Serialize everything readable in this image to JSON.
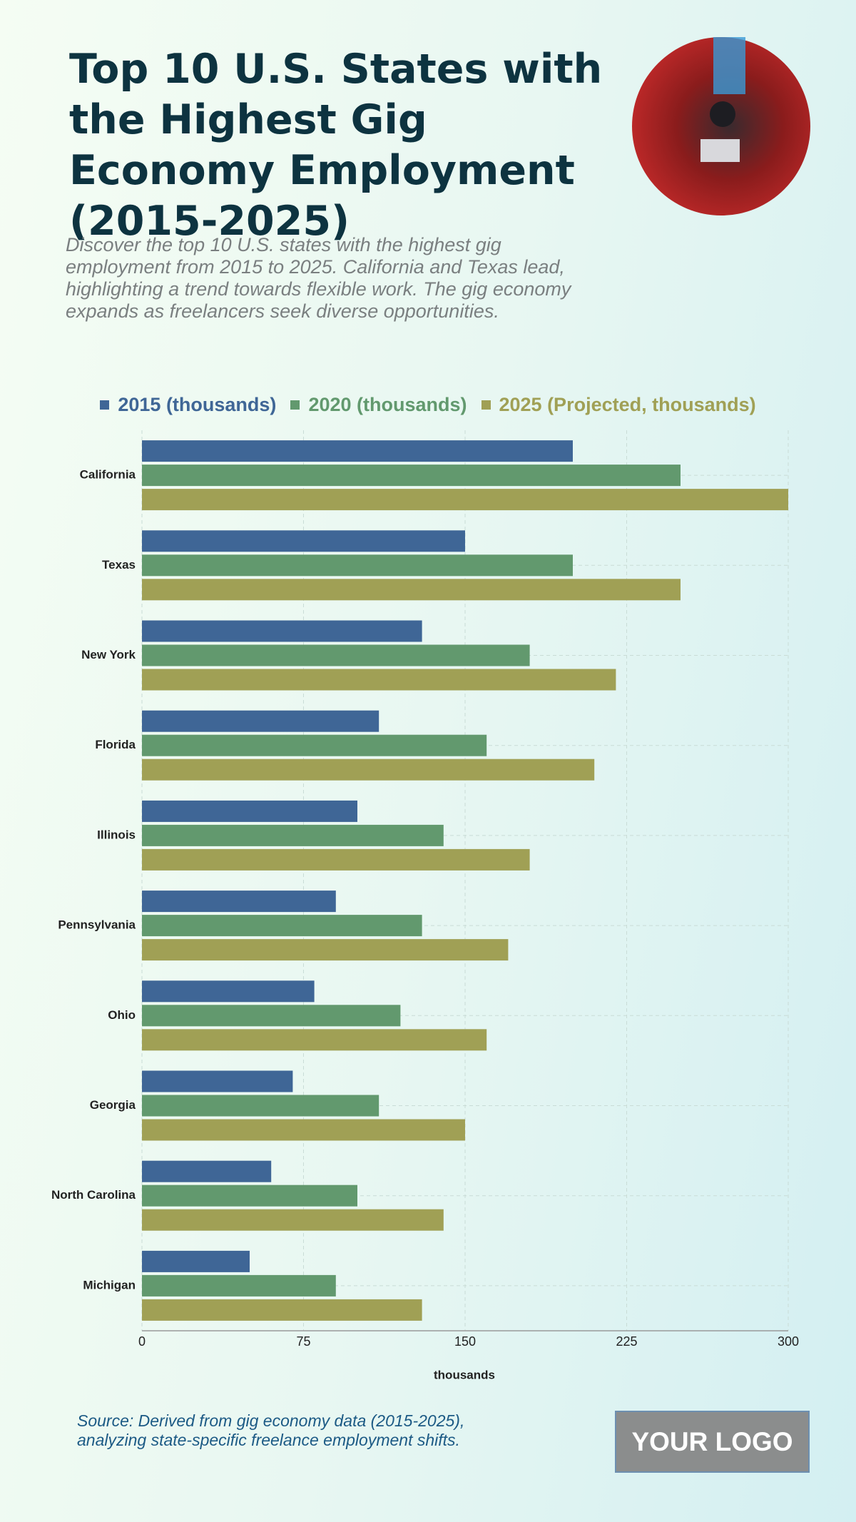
{
  "chart_data": {
    "type": "bar",
    "orientation": "horizontal",
    "title": "Top 10 U.S. States with the Highest Gig Economy Employment (2015-2025)",
    "subtitle": "Discover the top 10 U.S. states with the highest gig employment from 2015 to 2025. California and Texas lead, highlighting a trend towards flexible work. The gig economy expands as freelancers seek diverse opportunities.",
    "categories": [
      "California",
      "Texas",
      "New York",
      "Florida",
      "Illinois",
      "Pennsylvania",
      "Ohio",
      "Georgia",
      "North Carolina",
      "Michigan"
    ],
    "series": [
      {
        "name": "2015 (thousands)",
        "color": "#3f6696",
        "values": [
          200,
          150,
          130,
          110,
          100,
          90,
          80,
          70,
          60,
          50
        ]
      },
      {
        "name": "2020 (thousands)",
        "color": "#62996e",
        "values": [
          250,
          200,
          180,
          160,
          140,
          130,
          120,
          110,
          100,
          90
        ]
      },
      {
        "name": "2025 (Projected, thousands)",
        "color": "#a0a055",
        "values": [
          300,
          250,
          220,
          210,
          180,
          170,
          160,
          150,
          140,
          130
        ]
      }
    ],
    "xlim": [
      0,
      300
    ],
    "xticks": [
      0,
      75,
      150,
      225,
      300
    ],
    "grid": true,
    "x_label": "thousands",
    "source": "Source: Derived from gig economy data (2015-2025), analyzing state-specific freelance employment shifts.",
    "logo_text": "YOUR LOGO"
  }
}
